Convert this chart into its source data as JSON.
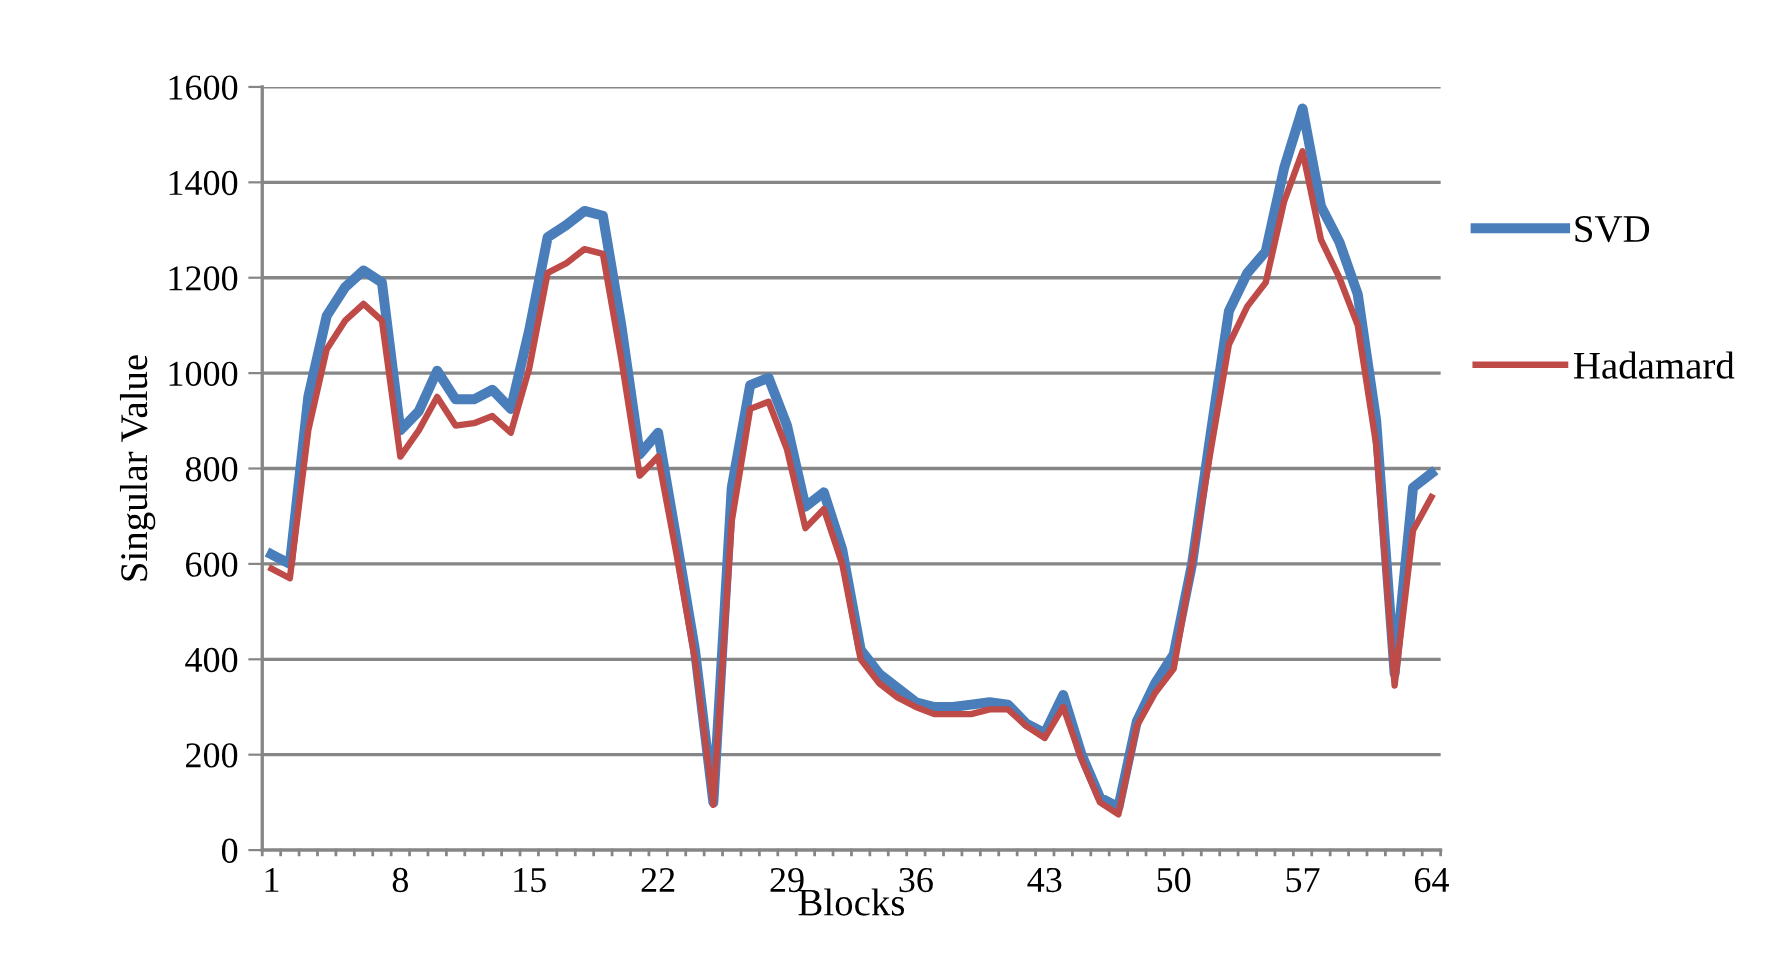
{
  "chart_data": {
    "type": "line",
    "xlabel": "Blocks",
    "ylabel": "Singular Value",
    "categories": [
      "1",
      null,
      null,
      null,
      null,
      null,
      null,
      "8",
      null,
      null,
      null,
      null,
      null,
      null,
      "15",
      null,
      null,
      null,
      null,
      null,
      null,
      "22",
      null,
      null,
      null,
      null,
      null,
      null,
      "29",
      null,
      null,
      null,
      null,
      null,
      null,
      "36",
      null,
      null,
      null,
      null,
      null,
      null,
      "43",
      null,
      null,
      null,
      null,
      null,
      null,
      "50",
      null,
      null,
      null,
      null,
      null,
      null,
      "57",
      null,
      null,
      null,
      null,
      null,
      null,
      "64"
    ],
    "series": [
      {
        "name": "SVD",
        "color": "#4a7ebb",
        "values": [
          620,
          600,
          950,
          1120,
          1180,
          1215,
          1190,
          880,
          920,
          1005,
          945,
          945,
          965,
          925,
          1090,
          1285,
          1310,
          1340,
          1330,
          1100,
          830,
          875,
          650,
          420,
          100,
          760,
          975,
          990,
          890,
          720,
          750,
          630,
          420,
          370,
          340,
          310,
          300,
          300,
          305,
          310,
          305,
          265,
          245,
          325,
          200,
          110,
          90,
          270,
          350,
          410,
          600,
          870,
          1130,
          1210,
          1255,
          1430,
          1555,
          1350,
          1275,
          1165,
          900,
          370,
          760,
          790
        ]
      },
      {
        "name": "Hadamard",
        "color": "#be4b48",
        "values": [
          590,
          570,
          880,
          1050,
          1110,
          1145,
          1110,
          825,
          880,
          950,
          890,
          895,
          910,
          875,
          1010,
          1210,
          1230,
          1260,
          1250,
          1030,
          785,
          825,
          620,
          400,
          95,
          690,
          925,
          940,
          840,
          675,
          715,
          600,
          400,
          350,
          320,
          300,
          285,
          285,
          285,
          295,
          295,
          260,
          235,
          300,
          190,
          100,
          75,
          260,
          330,
          380,
          600,
          835,
          1060,
          1140,
          1190,
          1360,
          1465,
          1280,
          1200,
          1100,
          850,
          345,
          670,
          740
        ]
      }
    ],
    "ylim": [
      0,
      1600
    ],
    "yticks": [
      0,
      200,
      400,
      600,
      800,
      1000,
      1200,
      1400,
      1600
    ],
    "grid": "y",
    "legend": "right",
    "marker": "none",
    "line_style": "solid"
  }
}
